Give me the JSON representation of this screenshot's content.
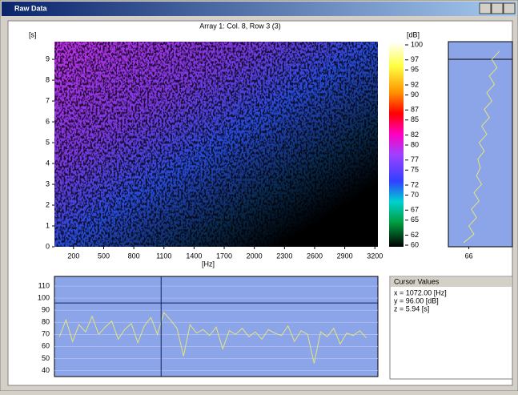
{
  "window": {
    "title": "Raw Data"
  },
  "chart_data": [
    {
      "type": "heatmap",
      "title": "Array 1: Col. 8, Row 3 (3)",
      "xlabel": "[Hz]",
      "ylabel": "[s]",
      "xlim": [
        10,
        3230
      ],
      "xticks": [
        200,
        500,
        800,
        1100,
        1400,
        1700,
        2000,
        2300,
        2600,
        2900,
        3200
      ],
      "ylim": [
        0,
        9.85
      ],
      "yticks": [
        0,
        1,
        2,
        3,
        4,
        5,
        6,
        7,
        8,
        9
      ]
    },
    {
      "type": "colorbar",
      "label": "[dB]",
      "ylim": [
        60,
        100
      ],
      "yticks": [
        100,
        97,
        95,
        92,
        90,
        87,
        85,
        82,
        80,
        77,
        75,
        72,
        70,
        67,
        65,
        62,
        60
      ]
    },
    {
      "type": "line",
      "xlim": [
        10,
        3230
      ],
      "ylim": [
        35,
        118
      ],
      "yticks": [
        110,
        100,
        90,
        80,
        70,
        60,
        50,
        40
      ],
      "cursor_x": 1072,
      "cursor_y": 96,
      "x": [
        60,
        125,
        190,
        255,
        320,
        385,
        450,
        515,
        580,
        645,
        710,
        775,
        840,
        905,
        970,
        1035,
        1100,
        1165,
        1230,
        1295,
        1360,
        1425,
        1490,
        1555,
        1620,
        1685,
        1750,
        1815,
        1880,
        1945,
        2010,
        2075,
        2140,
        2205,
        2270,
        2335,
        2400,
        2465,
        2530,
        2595,
        2660,
        2725,
        2790,
        2855,
        2920,
        2985,
        3050,
        3115
      ],
      "series": [
        {
          "color": "#e6e67a",
          "values": [
            68,
            82,
            64,
            78,
            72,
            85,
            70,
            76,
            81,
            66,
            74,
            79,
            63,
            77,
            84,
            70,
            88,
            82,
            75,
            52,
            78,
            71,
            74,
            69,
            76,
            58,
            73,
            70,
            75,
            68,
            72,
            66,
            74,
            71,
            69,
            77,
            64,
            73,
            70,
            46,
            72,
            68,
            75,
            62,
            71,
            69,
            73,
            67
          ]
        }
      ]
    },
    {
      "type": "profile",
      "xlim": [
        50,
        100
      ],
      "xticks": [
        66
      ],
      "ylim": [
        0,
        9.85
      ],
      "y": [
        0.2,
        0.6,
        1.0,
        1.4,
        1.8,
        2.2,
        2.6,
        3.0,
        3.4,
        3.8,
        4.2,
        4.6,
        5.0,
        5.4,
        5.8,
        6.2,
        6.6,
        7.0,
        7.4,
        7.8,
        8.2,
        8.6,
        9.0,
        9.4
      ],
      "series": [
        {
          "color": "#e6e67a",
          "values": [
            62,
            70,
            66,
            72,
            68,
            74,
            70,
            76,
            72,
            75,
            73,
            78,
            74,
            80,
            76,
            82,
            78,
            84,
            80,
            86,
            82,
            88,
            84,
            90
          ]
        }
      ]
    }
  ],
  "cursor_values": {
    "title": "Cursor Values",
    "lines": [
      "x = 1072.00 [Hz]",
      "y = 96.00 [dB]",
      "z = 5.94 [s]"
    ]
  }
}
